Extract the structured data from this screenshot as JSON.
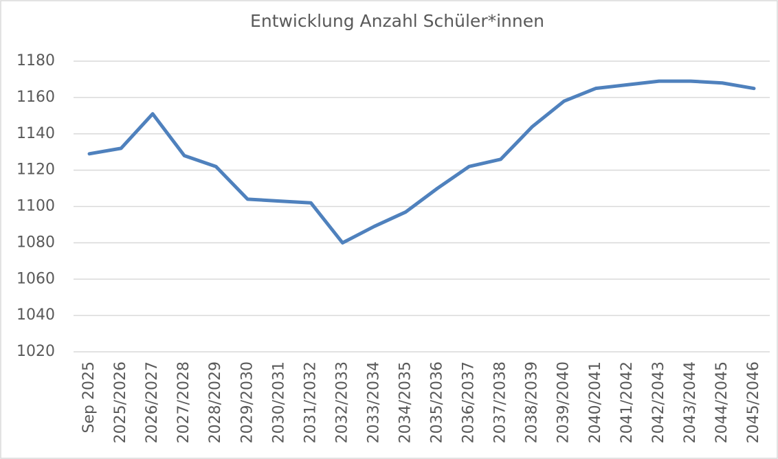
{
  "chart_data": {
    "type": "line",
    "title": "Entwicklung Anzahl Schüler*innen",
    "categories": [
      "Sep 2025",
      "2025/2026",
      "2026/2027",
      "2027/2028",
      "2028/2029",
      "2029/2030",
      "2030/2031",
      "2031/2032",
      "2032/2033",
      "2033/2034",
      "2034/2035",
      "2035/2036",
      "2036/2037",
      "2037/2038",
      "2038/2039",
      "2039/2040",
      "2040/2041",
      "2041/2042",
      "2042/2043",
      "2043/2044",
      "2044/2045",
      "2045/2046"
    ],
    "values": [
      1129,
      1132,
      1151,
      1128,
      1122,
      1104,
      1103,
      1102,
      1080,
      1089,
      1097,
      1110,
      1122,
      1126,
      1144,
      1158,
      1165,
      1167,
      1169,
      1169,
      1168,
      1165
    ],
    "color": "#4f81bd",
    "ylim": [
      1020,
      1180
    ],
    "yticks": [
      1020,
      1040,
      1060,
      1080,
      1100,
      1120,
      1140,
      1160,
      1180
    ],
    "grid": true
  }
}
